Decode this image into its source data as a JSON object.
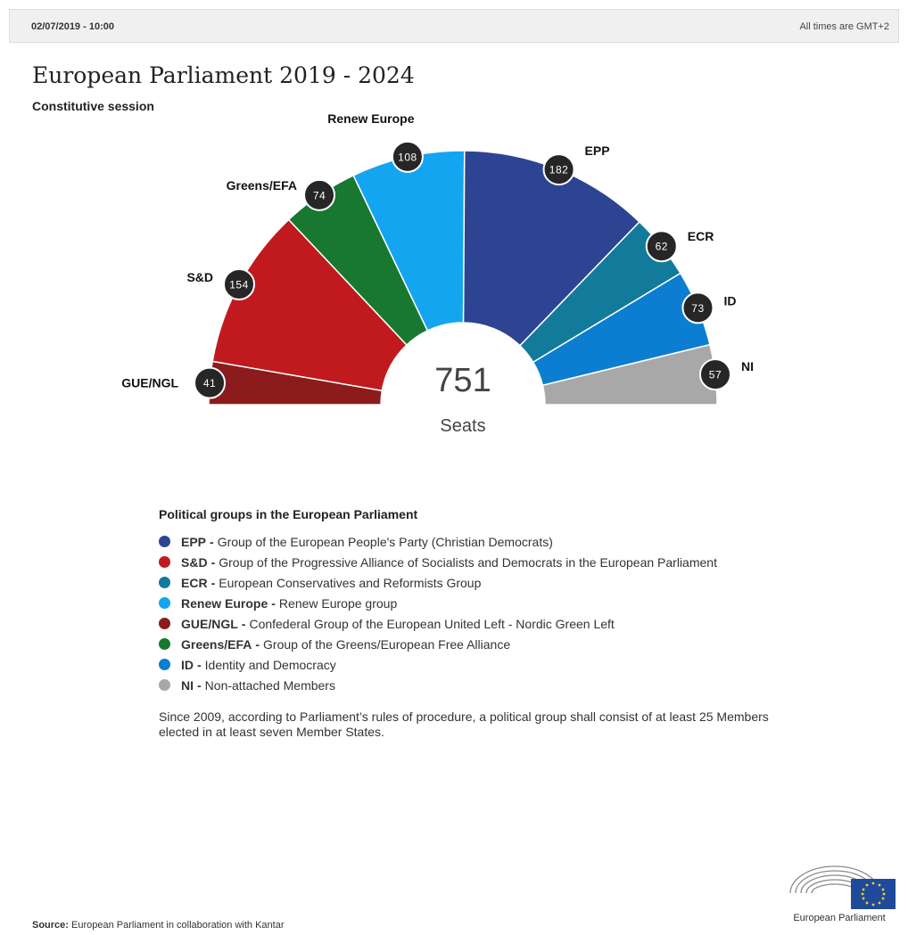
{
  "header": {
    "date": "02/07/2019 - 10:00",
    "timezone": "All times are GMT+2"
  },
  "title": "European Parliament 2019 - 2024",
  "subtitle": "Constitutive session",
  "chart_data": {
    "type": "pie",
    "title": "European Parliament 2019 - 2024",
    "subtitle": "Constitutive session",
    "total": "751",
    "total_label": "Seats",
    "series": [
      {
        "name": "GUE/NGL",
        "value": 41,
        "color": "#8c1c1c"
      },
      {
        "name": "S&D",
        "value": 154,
        "color": "#c01a1e"
      },
      {
        "name": "Greens/EFA",
        "value": 74,
        "color": "#18782f"
      },
      {
        "name": "Renew Europe",
        "value": 108,
        "color": "#13a5f0"
      },
      {
        "name": "EPP",
        "value": 182,
        "color": "#2c4491"
      },
      {
        "name": "ECR",
        "value": 62,
        "color": "#127a9a"
      },
      {
        "name": "ID",
        "value": 73,
        "color": "#0b7ed1"
      },
      {
        "name": "NI",
        "value": 57,
        "color": "#a8a8a8"
      }
    ]
  },
  "legend": {
    "heading": "Political groups in the European Parliament",
    "items": [
      {
        "abbr": "EPP",
        "desc": "Group of the European People's Party (Christian Democrats)",
        "color": "#2c4491"
      },
      {
        "abbr": "S&D",
        "desc": "Group of the Progressive Alliance of Socialists and Democrats in the European Parliament",
        "color": "#c01a1e"
      },
      {
        "abbr": "ECR",
        "desc": "European Conservatives and Reformists Group",
        "color": "#127a9a"
      },
      {
        "abbr": "Renew Europe",
        "desc": "Renew Europe group",
        "color": "#13a5f0"
      },
      {
        "abbr": "GUE/NGL",
        "desc": "Confederal Group of the European United Left - Nordic Green Left",
        "color": "#8c1c1c"
      },
      {
        "abbr": "Greens/EFA",
        "desc": "Group of the Greens/European Free Alliance",
        "color": "#18782f"
      },
      {
        "abbr": "ID",
        "desc": "Identity and Democracy",
        "color": "#0b7ed1"
      },
      {
        "abbr": "NI",
        "desc": "Non-attached Members",
        "color": "#a8a8a8"
      }
    ],
    "dash": "-"
  },
  "note": "Since 2009, according to Parliament’s rules of procedure, a political group shall consist of at least 25 Members elected in at least seven Member States.",
  "source": {
    "label": "Source:",
    "text": "European Parliament in collaboration with Kantar"
  },
  "logo": {
    "name": "European Parliament",
    "icon": "parliament-hemicycle-eu-flag-icon"
  }
}
